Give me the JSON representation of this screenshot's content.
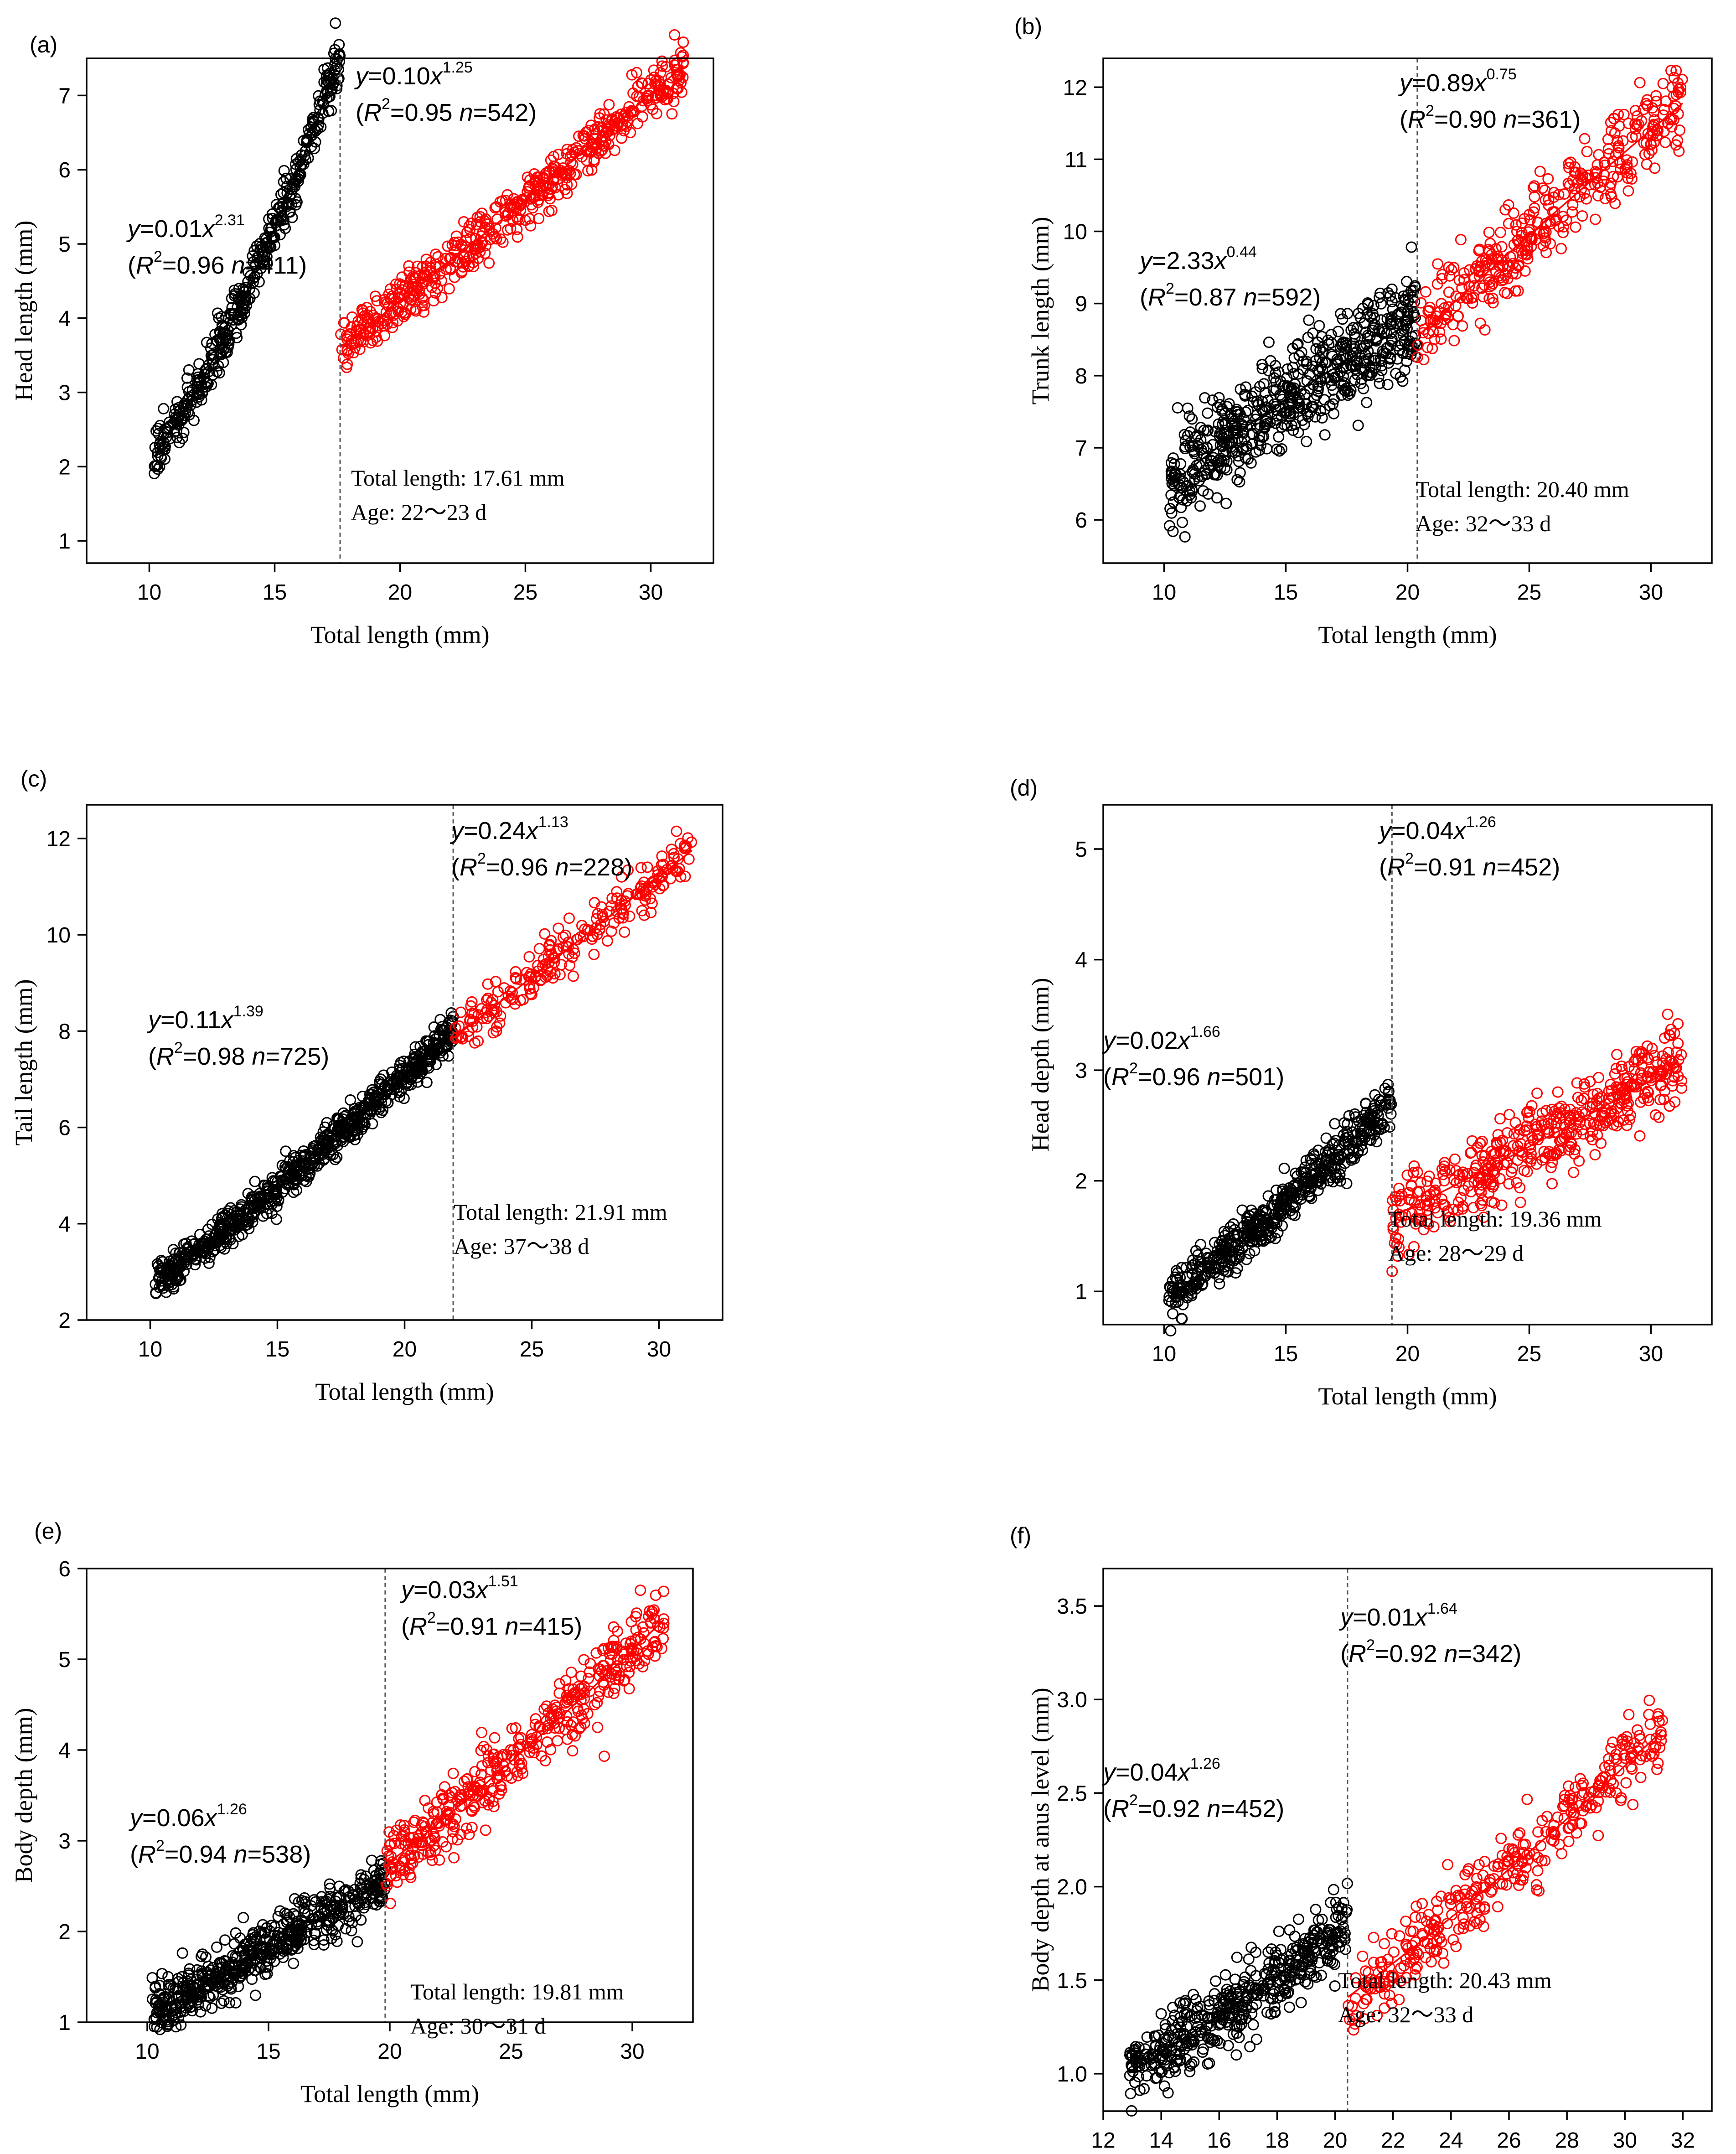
{
  "colors": {
    "stage1": "#000000",
    "stage2": "#ff0000",
    "divider": "#555555"
  },
  "chart_data": [
    {
      "panel_label": "(a)",
      "type": "scatter",
      "xlabel": "Total length (mm)",
      "ylabel": "Head length (mm)",
      "xlim": [
        7.5,
        32.5
      ],
      "ylim": [
        0.7,
        7.5
      ],
      "xticks": [
        10,
        15,
        20,
        25,
        30
      ],
      "yticks": [
        1,
        2,
        3,
        4,
        5,
        6,
        7
      ],
      "x_min": 10.2,
      "x_max": 31.3,
      "breakpoint": 17.61,
      "series": [
        {
          "name": "stage1",
          "a": 0.01,
          "b": 2.31,
          "r2": 0.96,
          "n": 411,
          "eq_coef": "0.01",
          "eq_exp": "2.31",
          "eq_stats": "=0.96 ",
          "eq_n": "=411)",
          "x_from": 10.2,
          "x_to": 17.61
        },
        {
          "name": "stage2",
          "a": 0.1,
          "b": 1.25,
          "r2": 0.95,
          "n": 542,
          "eq_coef": "0.10",
          "eq_exp": "1.25",
          "eq_stats": "=0.95 ",
          "eq_n": "=542)",
          "x_from": 17.61,
          "x_to": 31.3
        }
      ],
      "annotation": {
        "total": "Total length: 17.61 mm",
        "age": "Age: 22～23 d"
      }
    },
    {
      "panel_label": "(b)",
      "type": "scatter",
      "xlabel": "Total length (mm)",
      "ylabel": "Trunk length (mm)",
      "xlim": [
        7.5,
        32.5
      ],
      "ylim": [
        5.4,
        12.4
      ],
      "xticks": [
        10,
        15,
        20,
        25,
        30
      ],
      "yticks": [
        6,
        7,
        8,
        9,
        10,
        11,
        12
      ],
      "x_min": 10.2,
      "x_max": 31.3,
      "breakpoint": 20.4,
      "series": [
        {
          "name": "stage1",
          "a": 2.33,
          "b": 0.44,
          "r2": 0.87,
          "n": 592,
          "eq_coef": "2.33",
          "eq_exp": "0.44",
          "eq_stats": "=0.87 ",
          "eq_n": "=592)",
          "x_from": 10.2,
          "x_to": 20.4
        },
        {
          "name": "stage2",
          "a": 0.89,
          "b": 0.75,
          "r2": 0.9,
          "n": 361,
          "eq_coef": "0.89",
          "eq_exp": "0.75",
          "eq_stats": "=0.90 ",
          "eq_n": "=361)",
          "x_from": 20.4,
          "x_to": 31.3
        }
      ],
      "annotation": {
        "total": "Total length: 20.40 mm",
        "age": "Age: 32～33 d"
      }
    },
    {
      "panel_label": "(c)",
      "type": "scatter",
      "xlabel": "Total length (mm)",
      "ylabel": "Tail length (mm)",
      "xlim": [
        7.5,
        32.5
      ],
      "ylim": [
        2.0,
        12.7
      ],
      "xticks": [
        10,
        15,
        20,
        25,
        30
      ],
      "yticks": [
        2,
        4,
        6,
        8,
        10,
        12
      ],
      "x_min": 10.2,
      "x_max": 31.3,
      "breakpoint": 21.91,
      "series": [
        {
          "name": "stage1",
          "a": 0.11,
          "b": 1.39,
          "r2": 0.98,
          "n": 725,
          "eq_coef": "0.11",
          "eq_exp": "1.39",
          "eq_stats": "=0.98 ",
          "eq_n": "=725)",
          "x_from": 10.2,
          "x_to": 21.91
        },
        {
          "name": "stage2",
          "a": 0.24,
          "b": 1.13,
          "r2": 0.96,
          "n": 228,
          "eq_coef": "0.24",
          "eq_exp": "1.13",
          "eq_stats": "=0.96 ",
          "eq_n": "=228)",
          "x_from": 21.91,
          "x_to": 31.3
        }
      ],
      "annotation": {
        "total": "Total length: 21.91 mm",
        "age": "Age: 37～38 d"
      }
    },
    {
      "panel_label": "(d)",
      "type": "scatter",
      "xlabel": "Total length (mm)",
      "ylabel": "Head depth (mm)",
      "xlim": [
        7.5,
        32.5
      ],
      "ylim": [
        0.7,
        5.4
      ],
      "xticks": [
        10,
        15,
        20,
        25,
        30
      ],
      "yticks": [
        1,
        2,
        3,
        4,
        5
      ],
      "x_min": 10.2,
      "x_max": 31.3,
      "breakpoint": 19.36,
      "series": [
        {
          "name": "stage1",
          "a": 0.02,
          "b": 1.66,
          "r2": 0.96,
          "n": 501,
          "eq_coef": "0.02",
          "eq_exp": "1.66",
          "eq_stats": "=0.96 ",
          "eq_n": "=501)",
          "x_from": 10.2,
          "x_to": 19.36
        },
        {
          "name": "stage2",
          "a": 0.04,
          "b": 1.26,
          "r2": 0.91,
          "n": 452,
          "eq_coef": "0.04",
          "eq_exp": "1.26",
          "eq_stats": "=0.91 ",
          "eq_n": "=452)",
          "x_from": 19.36,
          "x_to": 31.3
        }
      ],
      "annotation": {
        "total": "Total length: 19.36 mm",
        "age": "Age: 28～29 d"
      }
    },
    {
      "panel_label": "(e)",
      "type": "scatter",
      "xlabel": "Total length (mm)",
      "ylabel": "Body depth (mm)",
      "xlim": [
        7.5,
        32.5
      ],
      "ylim": [
        1.0,
        6.0
      ],
      "xticks": [
        10,
        15,
        20,
        25,
        30
      ],
      "yticks": [
        1,
        2,
        3,
        4,
        5,
        6
      ],
      "x_min": 10.2,
      "x_max": 31.3,
      "breakpoint": 19.81,
      "series": [
        {
          "name": "stage1",
          "a": 0.06,
          "b": 1.26,
          "r2": 0.94,
          "n": 538,
          "eq_coef": "0.06",
          "eq_exp": "1.26",
          "eq_stats": "=0.94 ",
          "eq_n": "=538)",
          "x_from": 10.2,
          "x_to": 19.81
        },
        {
          "name": "stage2",
          "a": 0.03,
          "b": 1.51,
          "r2": 0.91,
          "n": 415,
          "eq_coef": "0.03",
          "eq_exp": "1.51",
          "eq_stats": "=0.91 ",
          "eq_n": "=415)",
          "x_from": 19.81,
          "x_to": 31.3
        }
      ],
      "annotation": {
        "total": "Total length: 19.81 mm",
        "age": "Age: 30～31 d"
      }
    },
    {
      "panel_label": "(f)",
      "type": "scatter",
      "xlabel": "Total length (mm)",
      "ylabel": "Body depth at anus level (mm)",
      "xlim": [
        12.0,
        33.0
      ],
      "ylim": [
        0.8,
        3.7
      ],
      "xticks": [
        12,
        14,
        16,
        18,
        20,
        22,
        24,
        26,
        28,
        30,
        32
      ],
      "yticks": [
        1.0,
        1.5,
        2.0,
        2.5,
        3.0,
        3.5
      ],
      "x_min": 12.9,
      "x_max": 31.3,
      "breakpoint": 20.43,
      "series": [
        {
          "name": "stage1",
          "a": 0.04,
          "b": 1.26,
          "r2": 0.92,
          "n": 452,
          "eq_coef": "0.04",
          "eq_exp": "1.26",
          "eq_stats": "=0.92 ",
          "eq_n": "=452)",
          "x_from": 12.9,
          "x_to": 20.43
        },
        {
          "name": "stage2",
          "a": 0.01,
          "b": 1.64,
          "r2": 0.92,
          "n": 342,
          "eq_coef": "0.01",
          "eq_exp": "1.64",
          "eq_stats": "=0.92 ",
          "eq_n": "=342)",
          "x_from": 20.43,
          "x_to": 31.3
        }
      ],
      "annotation": {
        "total": "Total length: 20.43 mm",
        "age": "Age: 32～33 d"
      }
    }
  ]
}
